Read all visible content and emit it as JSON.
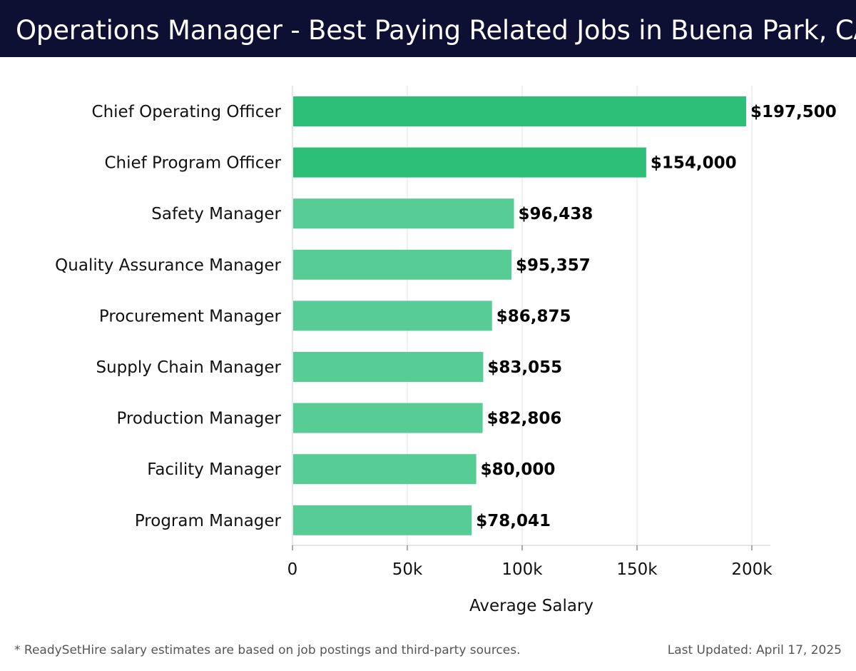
{
  "header": {
    "title": "Operations Manager - Best Paying Related Jobs in Buena Park, CA"
  },
  "chart_data": {
    "type": "bar",
    "orientation": "horizontal",
    "categories": [
      "Chief Operating Officer",
      "Chief Program Officer",
      "Safety Manager",
      "Quality Assurance Manager",
      "Procurement Manager",
      "Supply Chain Manager",
      "Production Manager",
      "Facility Manager",
      "Program Manager"
    ],
    "values": [
      197500,
      154000,
      96438,
      95357,
      86875,
      83055,
      82806,
      80000,
      78041
    ],
    "value_labels": [
      "$197,500",
      "$154,000",
      "$96,438",
      "$95,357",
      "$86,875",
      "$83,055",
      "$82,806",
      "$80,000",
      "$78,041"
    ],
    "xlabel": "Average Salary",
    "xlim": [
      0,
      210000
    ],
    "xticks": [
      0,
      50000,
      100000,
      150000,
      200000
    ],
    "xtick_labels": [
      "0",
      "50k",
      "100k",
      "150k",
      "200k"
    ],
    "grid": true,
    "colors": {
      "highlight_bar": "#2dbe78",
      "bar": "#57cc94",
      "grid": "#e2e2e2",
      "axis": "#cccccc",
      "text": "#111111"
    },
    "highlighted_count": 2
  },
  "footer": {
    "note": "* ReadySetHire salary estimates are based on job postings and third-party sources.",
    "updated": "Last Updated: April 17, 2025"
  }
}
